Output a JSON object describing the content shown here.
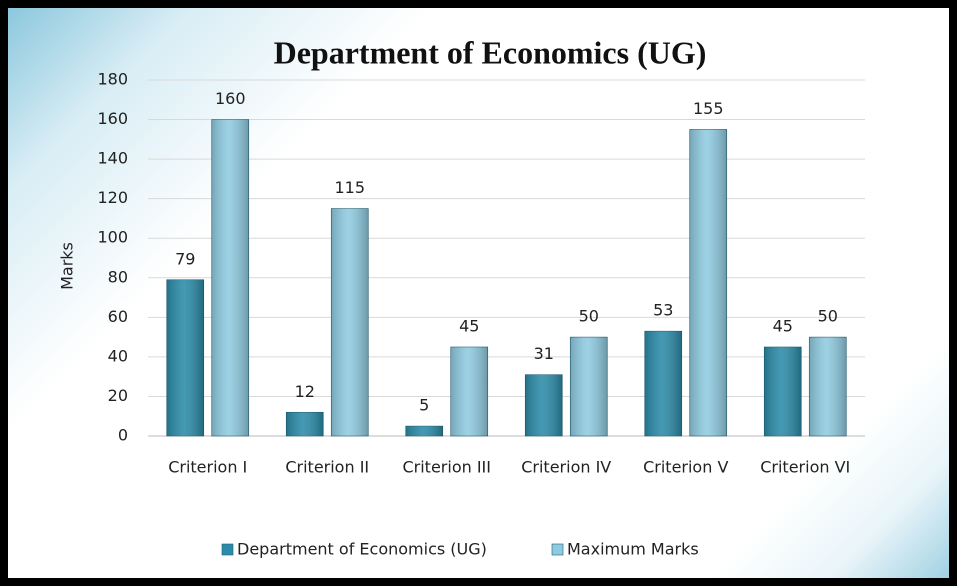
{
  "chart_data": {
    "type": "bar",
    "title": "Department of Economics (UG)",
    "y_label": "Marks",
    "categories": [
      "Criterion I",
      "Criterion II",
      "Criterion III",
      "Criterion IV",
      "Criterion V",
      "Criterion VI"
    ],
    "series": [
      {
        "name": "Department of Economics (UG)",
        "color": "#2b8ba8",
        "values": [
          79,
          12,
          5,
          31,
          53,
          45
        ]
      },
      {
        "name": "Maximum Marks",
        "color": "#8fcbe0",
        "values": [
          160,
          115,
          45,
          50,
          155,
          50
        ]
      }
    ],
    "ylim": [
      0,
      180
    ],
    "yticks": [
      0,
      20,
      40,
      60,
      80,
      100,
      120,
      140,
      160,
      180
    ],
    "grid": true,
    "legend": "bottom"
  }
}
